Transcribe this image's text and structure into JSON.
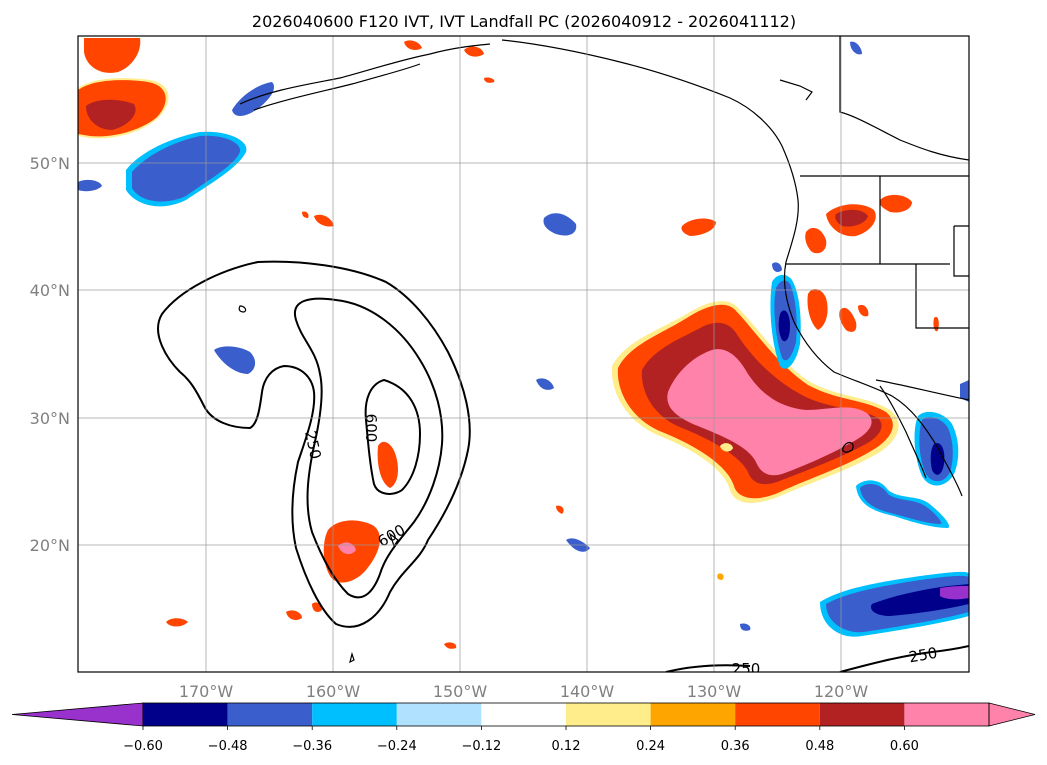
{
  "title": "2026040600 F120 IVT, IVT Landfall PC (2026040912 - 2026041112)",
  "map": {
    "lat_ticks": [
      "50°N",
      "40°N",
      "30°N",
      "20°N"
    ],
    "lon_ticks": [
      "170°W",
      "160°W",
      "150°W",
      "140°W",
      "130°W",
      "120°W"
    ],
    "contour_labels": [
      "250",
      "600",
      "600",
      "250",
      "250"
    ]
  },
  "colorbar": {
    "labels": [
      "−0.60",
      "−0.48",
      "−0.36",
      "−0.24",
      "−0.12",
      "0.12",
      "0.24",
      "0.36",
      "0.48",
      "0.60"
    ],
    "colors": {
      "under": "#9932CC",
      "n060": "#00008B",
      "n048": "#3A5FCD",
      "n036": "#00BFFF",
      "n024": "#B0E2FF",
      "n012": "#FFFFFF",
      "p012": "#FFEC8B",
      "p024": "#FFA500",
      "p036": "#FF4500",
      "p048": "#B22222",
      "over": "#FF82AB"
    }
  }
}
